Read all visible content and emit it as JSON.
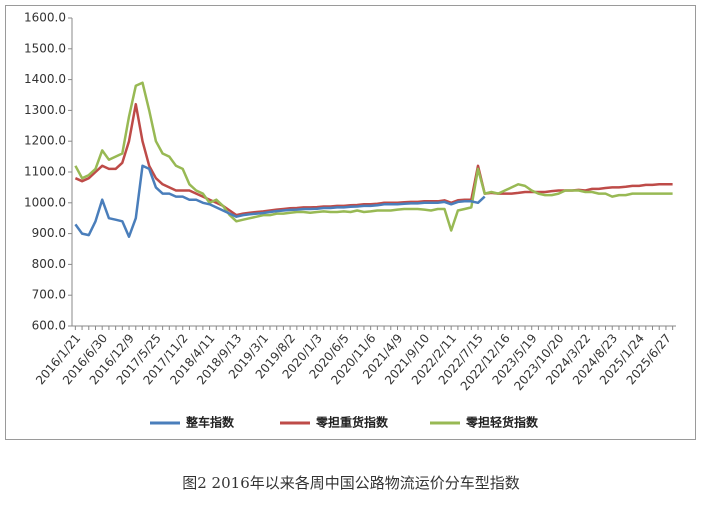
{
  "chart_data": {
    "type": "line",
    "caption": "图2 2016年以来各周中国公路物流运价分车型指数",
    "categories": [
      "2016/1/21",
      null,
      null,
      null,
      "2016/6/30",
      null,
      null,
      null,
      "2016/12/9",
      null,
      null,
      null,
      "2017/5/25",
      null,
      null,
      null,
      "2017/11/2",
      null,
      null,
      null,
      "2018/4/11",
      null,
      null,
      null,
      "2018/9/13",
      null,
      null,
      null,
      "2019/3/1",
      null,
      null,
      null,
      "2019/8/2",
      null,
      null,
      null,
      "2020/1/3",
      null,
      null,
      null,
      "2020/6/5",
      null,
      null,
      null,
      "2020/11/6",
      null,
      null,
      null,
      "2021/4/9",
      null,
      null,
      null,
      "2021/9/10",
      null,
      null,
      null,
      "2022/2/11",
      null,
      null,
      null,
      "2022/7/15",
      null,
      null,
      null,
      "2022/12/16",
      null,
      null,
      null,
      "2023/5/19",
      null,
      null,
      null,
      "2023/10/20",
      null,
      null,
      null,
      "2024/3/22",
      null,
      null,
      null,
      "2024/8/23",
      null,
      null,
      null,
      "2025/1/24",
      null,
      null,
      null,
      "2025/6/27",
      null
    ],
    "series": [
      {
        "name": "整车指数",
        "color": "#4a7ebb",
        "values": [
          930,
          900,
          895,
          940,
          1010,
          950,
          945,
          940,
          890,
          950,
          1120,
          1110,
          1050,
          1030,
          1030,
          1020,
          1020,
          1010,
          1010,
          1000,
          995,
          985,
          975,
          965,
          955,
          960,
          963,
          965,
          967,
          970,
          973,
          975,
          977,
          978,
          980,
          980,
          981,
          983,
          983,
          985,
          985,
          987,
          988,
          990,
          990,
          992,
          995,
          995,
          995,
          997,
          998,
          998,
          1000,
          1000,
          1000,
          1003,
          995,
          1003,
          1005,
          1005,
          1000,
          1020,
          null,
          null,
          null,
          null,
          null,
          null,
          null,
          null,
          null,
          null,
          null,
          null,
          null,
          null,
          null,
          null,
          null,
          null,
          null,
          null,
          null,
          null,
          null,
          null,
          null,
          null,
          null,
          null
        ]
      },
      {
        "name": "零担重货指数",
        "color": "#be4b48",
        "values": [
          1080,
          1070,
          1080,
          1100,
          1120,
          1110,
          1110,
          1130,
          1200,
          1320,
          1200,
          1120,
          1080,
          1060,
          1050,
          1040,
          1040,
          1040,
          1030,
          1020,
          1010,
          1000,
          990,
          975,
          960,
          965,
          968,
          970,
          972,
          975,
          978,
          980,
          982,
          983,
          985,
          985,
          986,
          988,
          988,
          990,
          990,
          992,
          993,
          995,
          995,
          997,
          1000,
          1000,
          1000,
          1002,
          1003,
          1003,
          1005,
          1005,
          1005,
          1008,
          1000,
          1008,
          1010,
          1010,
          1120,
          1030,
          1032,
          1030,
          1030,
          1030,
          1032,
          1035,
          1035,
          1035,
          1035,
          1038,
          1040,
          1040,
          1040,
          1042,
          1040,
          1045,
          1045,
          1048,
          1050,
          1050,
          1052,
          1055,
          1055,
          1058,
          1058,
          1060,
          1060,
          1060
        ]
      },
      {
        "name": "零担轻货指数",
        "color": "#98b954",
        "values": [
          1120,
          1080,
          1090,
          1110,
          1170,
          1140,
          1150,
          1160,
          1280,
          1380,
          1390,
          1300,
          1200,
          1160,
          1150,
          1120,
          1110,
          1060,
          1040,
          1030,
          1000,
          1010,
          990,
          960,
          940,
          945,
          950,
          955,
          960,
          960,
          965,
          965,
          968,
          970,
          970,
          968,
          970,
          972,
          970,
          970,
          972,
          970,
          975,
          970,
          972,
          975,
          975,
          975,
          978,
          980,
          980,
          980,
          978,
          975,
          980,
          980,
          910,
          975,
          980,
          985,
          1110,
          1030,
          1035,
          1030,
          1040,
          1050,
          1060,
          1055,
          1040,
          1030,
          1025,
          1025,
          1030,
          1040,
          1040,
          1040,
          1035,
          1035,
          1030,
          1030,
          1020,
          1025,
          1025,
          1030,
          1030,
          1030,
          1030,
          1030,
          1030,
          1030
        ]
      }
    ],
    "ylim": [
      600,
      1600
    ],
    "yticks": [
      {
        "value": 600,
        "label": "600.0"
      },
      {
        "value": 700,
        "label": "700.0"
      },
      {
        "value": 800,
        "label": "800.0"
      },
      {
        "value": 900,
        "label": "900.0"
      },
      {
        "value": 1000,
        "label": "1000.0"
      },
      {
        "value": 1100,
        "label": "1100.0"
      },
      {
        "value": 1200,
        "label": "1200.0"
      },
      {
        "value": 1300,
        "label": "1300.0"
      },
      {
        "value": 1400,
        "label": "1400.0"
      },
      {
        "value": 1500,
        "label": "1500.0"
      },
      {
        "value": 1600,
        "label": "1600.0"
      }
    ],
    "grid": false,
    "legend": "bottom"
  }
}
